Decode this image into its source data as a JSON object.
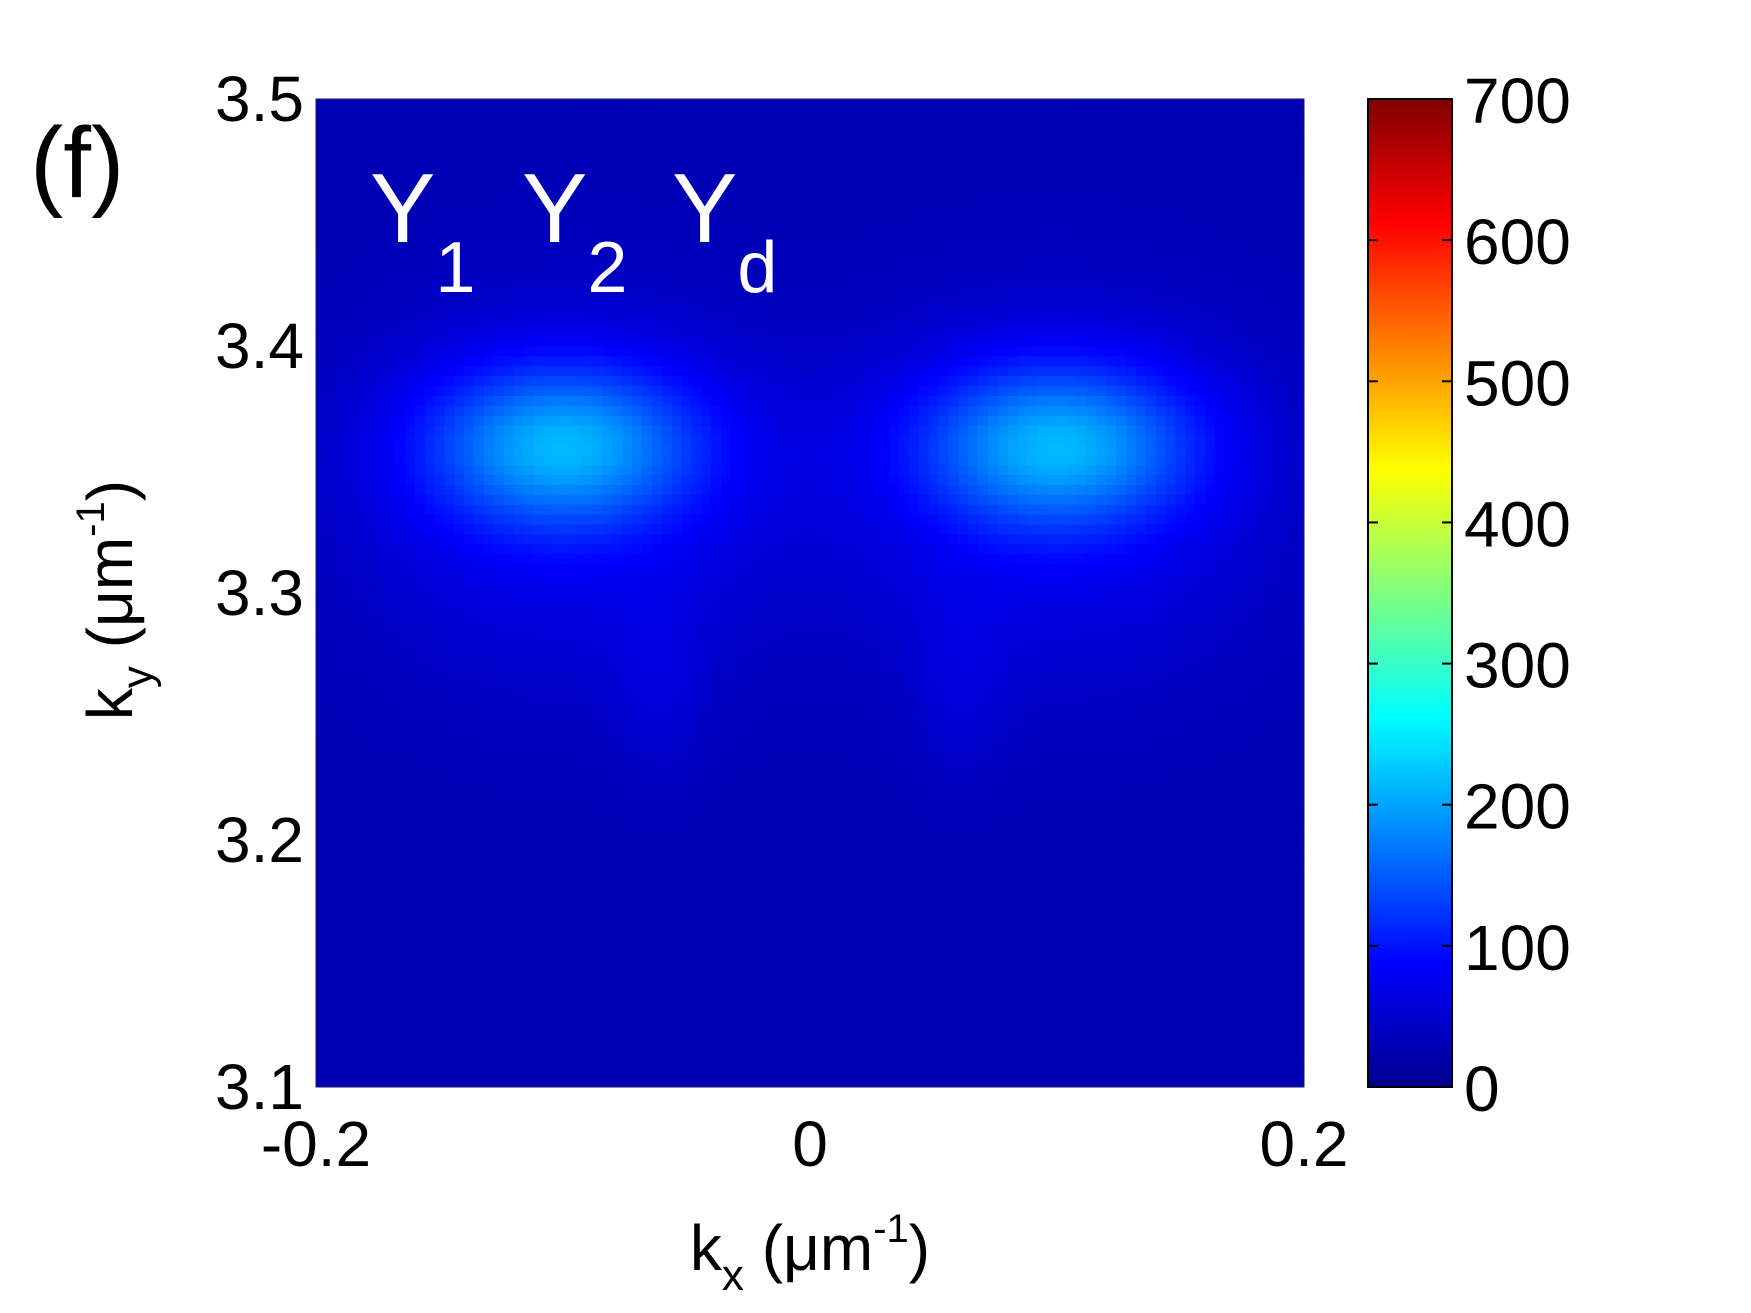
{
  "chart_data": {
    "type": "heatmap",
    "panel_label": "(f)",
    "xlabel": {
      "main": "k",
      "sub": "x",
      "unit_open": " (μm",
      "sup": "-1",
      "unit_close": ")"
    },
    "ylabel": {
      "main": "k",
      "sub": "y",
      "unit_open": " (μm",
      "sup": "-1",
      "unit_close": ")"
    },
    "xlim": [
      -0.2,
      0.2
    ],
    "ylim": [
      3.1,
      3.5
    ],
    "x_ticks": [
      -0.2,
      0,
      0.2
    ],
    "x_tick_labels": [
      "-0.2",
      "0",
      "0.2"
    ],
    "y_ticks": [
      3.1,
      3.2,
      3.3,
      3.4,
      3.5
    ],
    "y_tick_labels": [
      "3.1",
      "3.2",
      "3.3",
      "3.4",
      "3.5"
    ],
    "colorbar": {
      "colormap": "jet",
      "range": [
        0,
        700
      ],
      "ticks": [
        0,
        100,
        200,
        300,
        400,
        500,
        600,
        700
      ],
      "tick_labels": [
        "0",
        "100",
        "200",
        "300",
        "400",
        "500",
        "600",
        "700"
      ]
    },
    "annotations": [
      {
        "base": "Y",
        "sub": "1"
      },
      {
        "base": "Y",
        "sub": "2"
      },
      {
        "base": "Y",
        "sub": "d"
      }
    ],
    "features": [
      {
        "name": "left lobe",
        "kx_center": -0.1,
        "ky_center": 3.36,
        "peak_value": 170
      },
      {
        "name": "right lobe",
        "kx_center": 0.1,
        "ky_center": 3.36,
        "peak_value": 170
      }
    ]
  }
}
